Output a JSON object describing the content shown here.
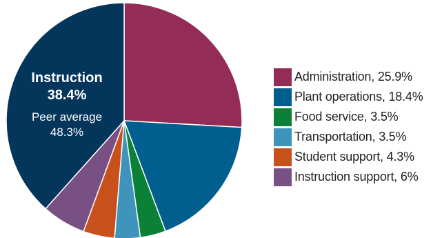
{
  "chart_data": {
    "type": "pie",
    "slices": [
      {
        "label": "Administration",
        "value": 25.9,
        "legend": "Administration, 25.9%",
        "color": "#932c57"
      },
      {
        "label": "Plant operations",
        "value": 18.4,
        "legend": "Plant operations, 18.4%",
        "color": "#005f8f"
      },
      {
        "label": "Food service",
        "value": 3.5,
        "legend": "Food service, 3.5%",
        "color": "#0a8137"
      },
      {
        "label": "Transportation",
        "value": 3.5,
        "legend": "Transportation, 3.5%",
        "color": "#3e94ba"
      },
      {
        "label": "Student support",
        "value": 4.3,
        "legend": "Student support, 4.3%",
        "color": "#c8501c"
      },
      {
        "label": "Instruction support",
        "value": 6,
        "legend": "Instruction support, 6%",
        "color": "#795083"
      },
      {
        "label": "Instruction",
        "value": 38.4,
        "color": "#04355a"
      }
    ],
    "callout": {
      "title": "Instruction",
      "value": "38.4%",
      "peer_label": "Peer average",
      "peer_value": "48.3%"
    },
    "legend_position": "right"
  }
}
